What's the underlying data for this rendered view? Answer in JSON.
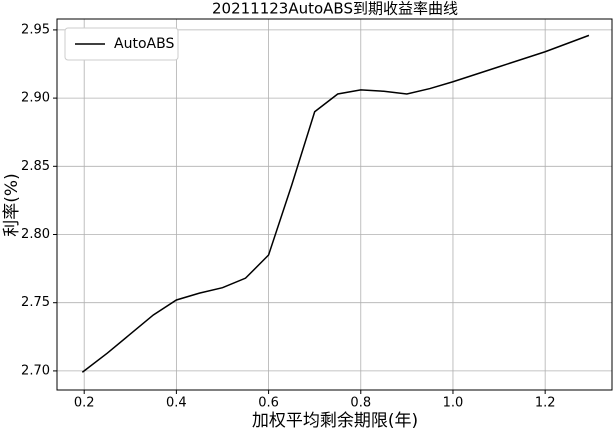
{
  "chart_data": {
    "type": "line",
    "title": "20211123AutoABS到期收益率曲线",
    "x_label": "加权平均剩余期限(年)",
    "y_label": "利率(%)",
    "x": [
      0.196,
      0.25,
      0.3,
      0.35,
      0.4,
      0.45,
      0.5,
      0.55,
      0.6,
      0.65,
      0.7,
      0.75,
      0.8,
      0.85,
      0.9,
      0.95,
      1.0,
      1.1,
      1.2,
      1.295
    ],
    "series": [
      {
        "name": "AutoABS",
        "color": "#000000",
        "values": [
          2.699,
          2.713,
          2.727,
          2.741,
          2.752,
          2.757,
          2.761,
          2.768,
          2.785,
          2.836,
          2.89,
          2.903,
          2.906,
          2.905,
          2.903,
          2.907,
          2.912,
          2.923,
          2.934,
          2.946
        ]
      }
    ],
    "xlim": [
      0.141,
      1.345
    ],
    "xticks": [
      0.2,
      0.4,
      0.6,
      0.8,
      {
        "value": 1,
        "label": "1.0"
      },
      1.2
    ],
    "ylim": [
      2.686,
      2.958
    ],
    "yticks": [
      {
        "value": 2.7,
        "label": "2.70"
      },
      2.75,
      {
        "value": 2.8,
        "label": "2.80"
      },
      2.85,
      {
        "value": 2.9,
        "label": "2.90"
      },
      2.95
    ],
    "grid": true,
    "legend": "upper-left"
  }
}
